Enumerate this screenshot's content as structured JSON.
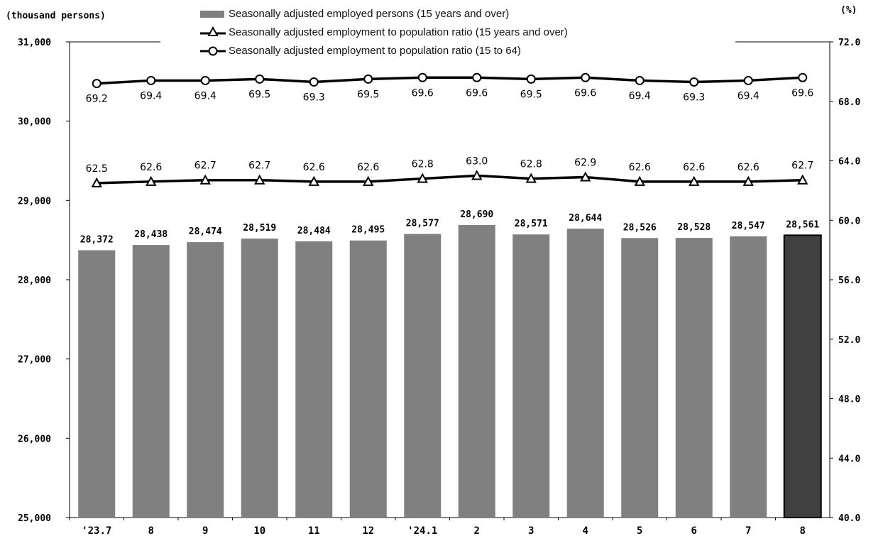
{
  "chart_data": {
    "type": "bar",
    "left_axis_unit": "(thousand persons)",
    "right_axis_unit": "(%)",
    "categories": [
      "'23.7",
      "8",
      "9",
      "10",
      "11",
      "12",
      "'24.1",
      "2",
      "3",
      "4",
      "5",
      "6",
      "7",
      "8"
    ],
    "left_ylim": [
      25000,
      31000
    ],
    "left_ticks": [
      "25,000",
      "26,000",
      "27,000",
      "28,000",
      "29,000",
      "30,000",
      "31,000"
    ],
    "right_ylim": [
      40.0,
      72.0
    ],
    "right_ticks": [
      "40.0",
      "44.0",
      "48.0",
      "52.0",
      "56.0",
      "60.0",
      "64.0",
      "68.0",
      "72.0"
    ],
    "grid": false,
    "legend_position": "top-center",
    "bars": {
      "name": "Seasonally adjusted employed persons (15 years and over)",
      "values": [
        28372,
        28438,
        28474,
        28519,
        28484,
        28495,
        28577,
        28690,
        28571,
        28644,
        28526,
        28528,
        28547,
        28561
      ],
      "labels": [
        "28,372",
        "28,438",
        "28,474",
        "28,519",
        "28,484",
        "28,495",
        "28,577",
        "28,690",
        "28,571",
        "28,644",
        "28,526",
        "28,528",
        "28,547",
        "28,561"
      ],
      "color": "#808080",
      "highlight_color": "#404040",
      "highlight_index": 13
    },
    "lines": [
      {
        "name": "Seasonally adjusted employment to population ratio (15 years and over)",
        "marker": "triangle",
        "values": [
          62.5,
          62.6,
          62.7,
          62.7,
          62.6,
          62.6,
          62.8,
          63.0,
          62.8,
          62.9,
          62.6,
          62.6,
          62.6,
          62.7
        ],
        "labels": [
          "62.5",
          "62.6",
          "62.7",
          "62.7",
          "62.6",
          "62.6",
          "62.8",
          "63.0",
          "62.8",
          "62.9",
          "62.6",
          "62.6",
          "62.6",
          "62.7"
        ],
        "color": "#000000"
      },
      {
        "name": "Seasonally adjusted employment to population ratio  (15 to 64)",
        "marker": "circle",
        "values": [
          69.2,
          69.4,
          69.4,
          69.5,
          69.3,
          69.5,
          69.6,
          69.6,
          69.5,
          69.6,
          69.4,
          69.3,
          69.4,
          69.6
        ],
        "labels": [
          "69.2",
          "69.4",
          "69.4",
          "69.5",
          "69.3",
          "69.5",
          "69.6",
          "69.6",
          "69.5",
          "69.6",
          "69.4",
          "69.3",
          "69.4",
          "69.6"
        ],
        "color": "#000000"
      }
    ]
  }
}
